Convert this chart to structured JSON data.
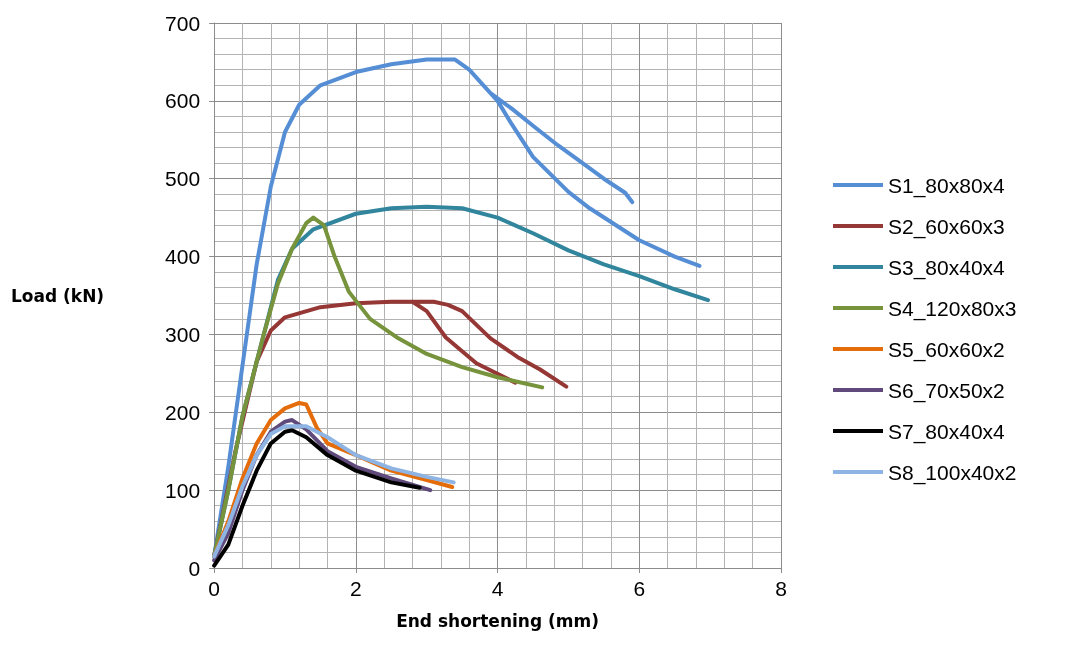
{
  "chart_data": {
    "type": "line",
    "xlabel": "End shortening (mm)",
    "ylabel": "Load (kN)",
    "xlim": [
      0,
      8
    ],
    "xticks": [
      0,
      2,
      4,
      6,
      8
    ],
    "ylim": [
      0,
      700
    ],
    "yticks": [
      0,
      100,
      200,
      300,
      400,
      500,
      600,
      700
    ],
    "grid": true,
    "legend": "right",
    "marker": "none",
    "line_style": "solid",
    "series": [
      {
        "name": "S1_80x80x4",
        "color": "#558ed5",
        "x": [
          0,
          0.2,
          0.4,
          0.6,
          0.8,
          1.0,
          1.2,
          1.5,
          2,
          2.5,
          3,
          3.4,
          3.6,
          3.8,
          3.9,
          4.2,
          4.5,
          4.85,
          5.2,
          5.5,
          5.8,
          5.9,
          null,
          3.9,
          4.0,
          4.2,
          4.5,
          5.0,
          5.3,
          6.0,
          6.5,
          6.85
        ],
        "values": [
          15,
          130,
          260,
          390,
          490,
          560,
          595,
          620,
          637,
          647,
          653,
          653,
          640,
          620,
          610,
          590,
          568,
          543,
          520,
          500,
          482,
          470,
          null,
          610,
          600,
          570,
          528,
          483,
          462,
          421,
          400,
          388
        ]
      },
      {
        "name": "S2_60x60x3",
        "color": "#953735",
        "x": [
          0,
          0.3,
          0.6,
          0.8,
          1,
          1.5,
          2,
          2.5,
          2.8,
          3.1,
          3.3,
          3.5,
          3.9,
          4.3,
          4.6,
          4.97,
          null,
          2.8,
          3.0,
          3.27,
          3.7,
          4.25
        ],
        "values": [
          15,
          150,
          265,
          305,
          322,
          335,
          340,
          342,
          342,
          342,
          338,
          330,
          295,
          270,
          255,
          233,
          null,
          342,
          330,
          296,
          263,
          238
        ]
      },
      {
        "name": "S3_80x40x4",
        "color": "#31859c",
        "x": [
          0,
          0.2,
          0.4,
          0.7,
          0.9,
          1.1,
          1.4,
          2,
          2.5,
          3,
          3.5,
          4,
          4.5,
          5,
          5.5,
          6,
          6.5,
          6.97
        ],
        "values": [
          15,
          100,
          195,
          300,
          370,
          410,
          435,
          455,
          462,
          464,
          462,
          450,
          430,
          408,
          390,
          375,
          358,
          344
        ]
      },
      {
        "name": "S4_120x80x3",
        "color": "#77933c",
        "x": [
          0,
          0.2,
          0.4,
          0.7,
          0.9,
          1.1,
          1.3,
          1.4,
          1.55,
          1.7,
          1.9,
          2.2,
          2.6,
          3,
          3.5,
          4,
          4.63
        ],
        "values": [
          15,
          100,
          195,
          300,
          365,
          410,
          443,
          450,
          440,
          400,
          355,
          320,
          295,
          275,
          258,
          245,
          232
        ]
      },
      {
        "name": "S5_60x60x2",
        "color": "#e46c0a",
        "x": [
          0,
          0.2,
          0.4,
          0.6,
          0.8,
          1,
          1.2,
          1.3,
          1.45,
          1.6,
          2,
          2.5,
          3,
          3.36
        ],
        "values": [
          15,
          60,
          115,
          160,
          190,
          205,
          212,
          210,
          180,
          160,
          145,
          125,
          113,
          104
        ]
      },
      {
        "name": "S6_70x50x2",
        "color": "#604a7b",
        "x": [
          0,
          0.2,
          0.4,
          0.6,
          0.8,
          1,
          1.1,
          1.3,
          1.6,
          2,
          2.5,
          3.05
        ],
        "values": [
          10,
          45,
          100,
          145,
          175,
          188,
          190,
          178,
          150,
          130,
          115,
          100
        ]
      },
      {
        "name": "S7_80x40x4",
        "color": "#000000",
        "x": [
          0,
          0.2,
          0.4,
          0.6,
          0.8,
          1,
          1.1,
          1.3,
          1.6,
          2,
          2.5,
          2.9
        ],
        "values": [
          3,
          30,
          80,
          125,
          160,
          175,
          177,
          168,
          145,
          125,
          110,
          103
        ]
      },
      {
        "name": "S8_100x40x2",
        "color": "#8eb4e3",
        "x": [
          0,
          0.2,
          0.4,
          0.6,
          0.8,
          1,
          1.3,
          1.6,
          2,
          2.5,
          3,
          3.38
        ],
        "values": [
          15,
          55,
          105,
          145,
          172,
          182,
          182,
          168,
          145,
          128,
          117,
          110
        ]
      }
    ]
  }
}
